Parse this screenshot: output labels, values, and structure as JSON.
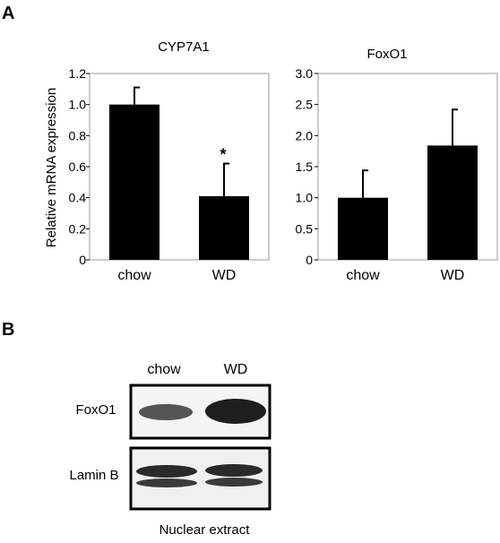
{
  "panel_labels": {
    "a": "A",
    "b": "B"
  },
  "chart_data": [
    {
      "type": "bar",
      "title": "CYP7A1",
      "ylabel": "Relative mRNA expression",
      "xlabel": "",
      "categories": [
        "chow",
        "WD"
      ],
      "values": [
        1.0,
        0.41
      ],
      "error": [
        0.11,
        0.21
      ],
      "ylim": [
        0,
        1.2
      ],
      "yticks": [
        "0",
        "0.2",
        "0.4",
        "0.6",
        "0.8",
        "1.0",
        "1.2"
      ],
      "annotations": [
        {
          "category": "WD",
          "text": "*"
        }
      ],
      "grid": false
    },
    {
      "type": "bar",
      "title": "FoxO1",
      "xlabel": "",
      "categories": [
        "chow",
        "WD"
      ],
      "values": [
        1.0,
        1.84
      ],
      "error": [
        0.44,
        0.58
      ],
      "ylim": [
        0,
        3.0
      ],
      "yticks": [
        "0",
        "0.5",
        "1.0",
        "1.5",
        "2.0",
        "2.5",
        "3.0"
      ],
      "grid": false
    }
  ],
  "blot": {
    "lanes": [
      "chow",
      "WD"
    ],
    "rows": [
      "FoxO1",
      "Lamin B"
    ],
    "caption": "Nuclear extract"
  }
}
